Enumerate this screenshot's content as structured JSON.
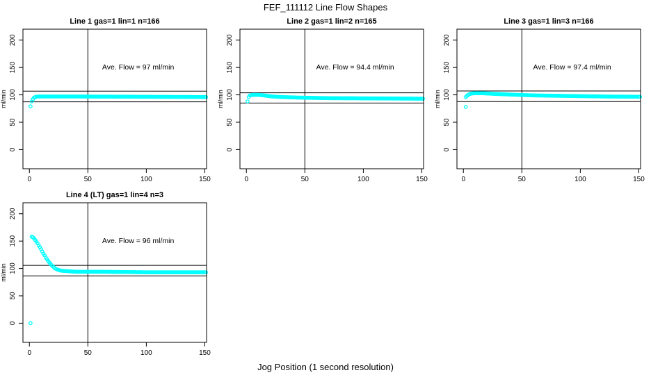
{
  "figure": {
    "title": "FEF_111112  Line Flow Shapes",
    "xlabel": "Jog Position (1 second resolution)",
    "background_color": "#FFFFFF",
    "axis_color": "#000000",
    "point_color": "#00FFFF"
  },
  "chart_data": [
    {
      "type": "scatter",
      "title": "Line 1 gas=1 lin=1 n=166",
      "annotation": "Ave. Flow =  97  ml/min",
      "ave_flow_ml_min": 97,
      "n": 166,
      "ylabel": "ml/min",
      "x_ticks": [
        0,
        50,
        100,
        150
      ],
      "y_ticks": [
        0,
        50,
        100,
        150,
        200
      ],
      "xlim": [
        -5.5,
        151.5
      ],
      "ylim": [
        -35,
        220
      ],
      "vline_x": 50,
      "hlines": [
        106.7,
        87.3
      ],
      "annotation_pos": [
        93,
        150
      ],
      "marker": "open-circle",
      "curve_points": [
        [
          2,
          88
        ],
        [
          3,
          92
        ],
        [
          4,
          95
        ],
        [
          5,
          96
        ],
        [
          7,
          97
        ],
        [
          40,
          97
        ],
        [
          151,
          96
        ]
      ],
      "outlier_points": [
        [
          1,
          79
        ]
      ]
    },
    {
      "type": "scatter",
      "title": "Line 2 gas=1 lin=2 n=165",
      "annotation": "Ave. Flow =  94.4  ml/min",
      "ave_flow_ml_min": 94.4,
      "n": 165,
      "ylabel": "ml/min",
      "x_ticks": [
        0,
        50,
        100,
        150
      ],
      "y_ticks": [
        0,
        50,
        100,
        150,
        200
      ],
      "xlim": [
        -5.5,
        151.5
      ],
      "ylim": [
        -35,
        220
      ],
      "vline_x": 50,
      "hlines": [
        103.8,
        85.0
      ],
      "annotation_pos": [
        93,
        150
      ],
      "marker": "open-circle",
      "curve_points": [
        [
          1,
          88
        ],
        [
          2,
          96
        ],
        [
          3,
          99
        ],
        [
          5,
          100
        ],
        [
          10,
          100
        ],
        [
          15,
          99
        ],
        [
          22,
          97
        ],
        [
          30,
          96
        ],
        [
          45,
          95
        ],
        [
          70,
          94
        ],
        [
          110,
          93.5
        ],
        [
          151,
          93
        ]
      ],
      "outlier_points": []
    },
    {
      "type": "scatter",
      "title": "Line 3 gas=1 lin=3 n=166",
      "annotation": "Ave. Flow =  97.4  ml/min",
      "ave_flow_ml_min": 97.4,
      "n": 166,
      "ylabel": "ml/min",
      "x_ticks": [
        0,
        50,
        100,
        150
      ],
      "y_ticks": [
        0,
        50,
        100,
        150,
        200
      ],
      "xlim": [
        -5.5,
        151.5
      ],
      "ylim": [
        -35,
        220
      ],
      "vline_x": 50,
      "hlines": [
        107.1,
        87.7
      ],
      "annotation_pos": [
        93,
        150
      ],
      "marker": "open-circle",
      "curve_points": [
        [
          2,
          96
        ],
        [
          3,
          98
        ],
        [
          4,
          100
        ],
        [
          6,
          102
        ],
        [
          9,
          103
        ],
        [
          16,
          103
        ],
        [
          25,
          102
        ],
        [
          40,
          100.5
        ],
        [
          60,
          99
        ],
        [
          90,
          98
        ],
        [
          120,
          97
        ],
        [
          151,
          96.5
        ]
      ],
      "outlier_points": [
        [
          2,
          78
        ]
      ]
    },
    {
      "type": "scatter",
      "title": "Line 4 (LT) gas=1 lin=4 n=3",
      "annotation": "Ave. Flow =  96  ml/min",
      "ave_flow_ml_min": 96,
      "n": 3,
      "ylabel": "ml/min",
      "x_ticks": [
        0,
        50,
        100,
        150
      ],
      "y_ticks": [
        0,
        50,
        100,
        150,
        200
      ],
      "xlim": [
        -5.5,
        151.5
      ],
      "ylim": [
        -35,
        220
      ],
      "vline_x": 50,
      "hlines": [
        105.6,
        86.4
      ],
      "annotation_pos": [
        93,
        150
      ],
      "marker": "open-circle",
      "curve_points": [
        [
          2,
          158
        ],
        [
          3,
          157
        ],
        [
          4,
          155
        ],
        [
          5,
          152
        ],
        [
          6,
          149
        ],
        [
          7,
          146
        ],
        [
          8,
          142
        ],
        [
          9,
          139
        ],
        [
          10,
          135
        ],
        [
          11,
          131
        ],
        [
          12,
          127
        ],
        [
          13,
          124
        ],
        [
          14,
          120
        ],
        [
          15,
          117
        ],
        [
          16,
          114
        ],
        [
          17,
          111
        ],
        [
          18,
          108
        ],
        [
          19,
          106
        ],
        [
          20,
          104
        ],
        [
          21,
          102
        ],
        [
          22,
          100
        ],
        [
          24,
          98
        ],
        [
          26,
          96.5
        ],
        [
          29,
          95.5
        ],
        [
          33,
          95
        ],
        [
          40,
          94
        ],
        [
          60,
          94
        ],
        [
          100,
          93
        ],
        [
          151,
          93
        ]
      ],
      "outlier_points": [
        [
          1,
          0
        ]
      ]
    }
  ]
}
